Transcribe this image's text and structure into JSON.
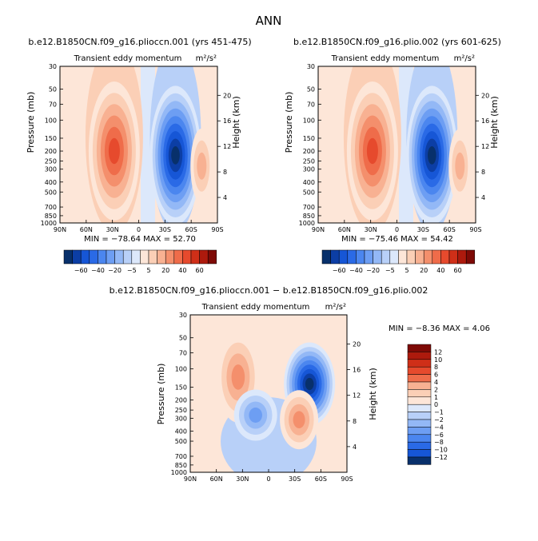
{
  "main_title": "ANN",
  "colors": {
    "blues": [
      "#08306b",
      "#0c3ea5",
      "#1656d6",
      "#2a6ae6",
      "#4b86ef",
      "#6d9ef3",
      "#93b8f6",
      "#b8d0f8",
      "#dce8fb"
    ],
    "reds": [
      "#fde6d8",
      "#fbcfb6",
      "#f8b192",
      "#f48f6c",
      "#ef6c4a",
      "#e64a2d",
      "#cf2f18",
      "#ad1a0d",
      "#7e0a06"
    ]
  },
  "chart_data": [
    {
      "type": "heatmap",
      "title": "b.e12.B1850CN.f09_g16.plioccn.001 (yrs 451-475)",
      "subtitle": "Transient eddy momentum",
      "units_text": "m²/s²",
      "ylabel": "Pressure (mb)",
      "ylabel_right": "Height (km)",
      "x_ticks": [
        "90N",
        "60N",
        "30N",
        "0",
        "30S",
        "60S",
        "90S"
      ],
      "y_ticks": [
        "30",
        "50",
        "70",
        "100",
        "150",
        "200",
        "250",
        "300",
        "400",
        "500",
        "700",
        "850",
        "1000"
      ],
      "y_ticks_right": [
        "20",
        "16",
        "12",
        "8",
        "4"
      ],
      "min_max_text": "MIN = −78.64   MAX =  52.70",
      "colorbar_labels": [
        "−60",
        "−40",
        "−20",
        "−5",
        "5",
        "20",
        "40",
        "60"
      ],
      "features": [
        {
          "lat": 28,
          "p": 200,
          "value": 52.7
        },
        {
          "lat": -42,
          "p": 220,
          "value": -78.64
        },
        {
          "lat": -72,
          "p": 280,
          "value": 28
        }
      ]
    },
    {
      "type": "heatmap",
      "title": "b.e12.B1850CN.f09_g16.plio.002 (yrs 601-625)",
      "subtitle": "Transient eddy momentum",
      "units_text": "m²/s²",
      "ylabel": "Pressure (mb)",
      "ylabel_right": "Height (km)",
      "x_ticks": [
        "90N",
        "60N",
        "30N",
        "0",
        "30S",
        "60S",
        "90S"
      ],
      "y_ticks": [
        "30",
        "50",
        "70",
        "100",
        "150",
        "200",
        "250",
        "300",
        "400",
        "500",
        "700",
        "850",
        "1000"
      ],
      "y_ticks_right": [
        "20",
        "16",
        "12",
        "8",
        "4"
      ],
      "min_max_text": "MIN = −75.46   MAX =  54.42",
      "colorbar_labels": [
        "−60",
        "−40",
        "−20",
        "−5",
        "5",
        "20",
        "40",
        "60"
      ],
      "features": [
        {
          "lat": 28,
          "p": 200,
          "value": 54.42
        },
        {
          "lat": -40,
          "p": 220,
          "value": -75.46
        },
        {
          "lat": -72,
          "p": 280,
          "value": 29
        }
      ]
    },
    {
      "type": "heatmap",
      "title": "b.e12.B1850CN.f09_g16.plioccn.001 − b.e12.B1850CN.f09_g16.plio.002",
      "subtitle": "Transient eddy momentum",
      "units_text": "m²/s²",
      "ylabel": "Pressure (mb)",
      "ylabel_right": "Height (km)",
      "x_ticks": [
        "90N",
        "60N",
        "30N",
        "0",
        "30S",
        "60S",
        "90S"
      ],
      "y_ticks": [
        "30",
        "50",
        "70",
        "100",
        "150",
        "200",
        "250",
        "300",
        "400",
        "500",
        "700",
        "850",
        "1000"
      ],
      "y_ticks_right": [
        "20",
        "16",
        "12",
        "8",
        "4"
      ],
      "min_max_text": "MIN =  −8.36   MAX =   4.06",
      "colorbar_labels": [
        "12",
        "10",
        "8",
        "6",
        "4",
        "2",
        "1",
        "0",
        "−1",
        "−2",
        "−4",
        "−6",
        "−8",
        "−10",
        "−12"
      ],
      "features": [
        {
          "lat": -47,
          "p": 140,
          "value": -8.36
        },
        {
          "lat": 35,
          "p": 120,
          "value": 4.06
        },
        {
          "lat": -35,
          "p": 310,
          "value": 3.5
        },
        {
          "lat": 15,
          "p": 280,
          "value": -4
        }
      ]
    }
  ]
}
